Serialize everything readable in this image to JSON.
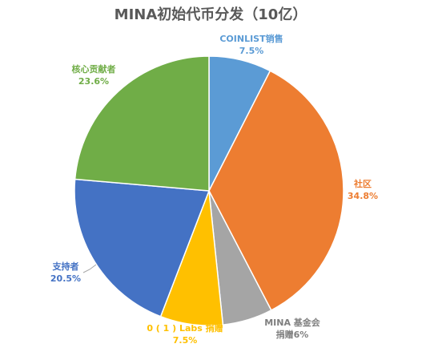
{
  "chart_data": {
    "type": "pie",
    "title": "MINA初始代币分发（10亿）",
    "slices": [
      {
        "name": "COINLIST销售",
        "value": 7.5,
        "display": "7.5%",
        "color": "#5B9BD5"
      },
      {
        "name": "社区",
        "value": 34.8,
        "display": "34.8%",
        "color": "#ED7D31"
      },
      {
        "name": "MINA 基金会",
        "value": 6,
        "display": "6%",
        "name_line2": "捐赠",
        "color": "#A5A5A5"
      },
      {
        "name": "0 ( 1 ) Labs 捐赠",
        "value": 7.5,
        "display": "7.5%",
        "color": "#FFC000"
      },
      {
        "name": "支持者",
        "value": 20.5,
        "display": "20.5%",
        "color": "#4472C4"
      },
      {
        "name": "核心贡献者",
        "value": 23.6,
        "display": "23.6%",
        "color": "#70AD47"
      }
    ],
    "legend": "none"
  }
}
